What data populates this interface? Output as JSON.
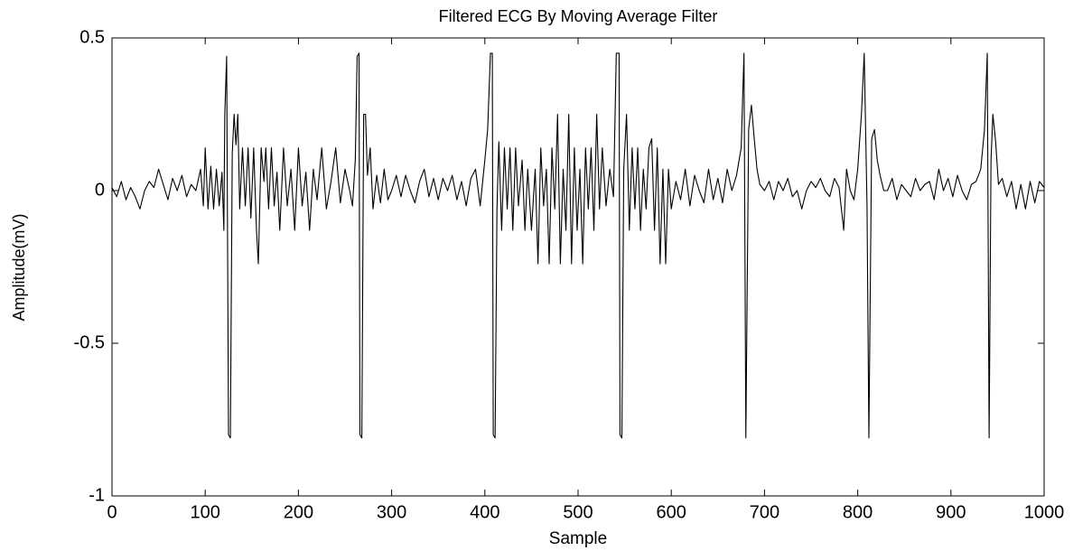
{
  "chart_data": {
    "type": "line",
    "title": "Filtered ECG By Moving Average Filter",
    "x_label": "Sample",
    "y_label": "Amplitude(mV)",
    "color": "#000000",
    "xlim": [
      0,
      1000
    ],
    "xticks": [
      0,
      100,
      200,
      300,
      400,
      500,
      600,
      700,
      800,
      900,
      1000
    ],
    "ylim": [
      -1,
      0.5
    ],
    "yticks": [
      -1,
      -0.5,
      0,
      0.5
    ],
    "grid": false,
    "x": [
      0,
      5,
      10,
      15,
      20,
      25,
      30,
      35,
      40,
      45,
      50,
      55,
      60,
      65,
      70,
      75,
      80,
      85,
      90,
      95,
      98,
      100,
      103,
      106,
      109,
      112,
      115,
      118,
      120,
      121,
      123,
      125,
      127,
      129,
      131,
      133,
      135,
      137,
      140,
      143,
      146,
      149,
      152,
      155,
      157,
      160,
      163,
      165,
      168,
      171,
      174,
      177,
      180,
      184,
      188,
      192,
      196,
      200,
      204,
      208,
      212,
      216,
      220,
      225,
      230,
      235,
      240,
      245,
      250,
      255,
      258,
      261,
      263,
      265,
      266,
      268,
      270,
      272,
      274,
      277,
      280,
      284,
      288,
      292,
      296,
      300,
      305,
      310,
      315,
      320,
      325,
      330,
      335,
      340,
      345,
      350,
      355,
      360,
      365,
      370,
      375,
      380,
      385,
      390,
      395,
      400,
      403,
      406,
      408,
      409,
      411,
      413,
      415,
      418,
      421,
      424,
      427,
      430,
      433,
      436,
      440,
      443,
      446,
      450,
      454,
      457,
      460,
      463,
      466,
      469,
      472,
      475,
      478,
      481,
      484,
      487,
      490,
      493,
      496,
      499,
      502,
      505,
      508,
      511,
      514,
      517,
      520,
      523,
      526,
      530,
      534,
      538,
      541,
      544,
      545,
      547,
      549,
      552,
      555,
      558,
      561,
      564,
      567,
      570,
      573,
      576,
      579,
      582,
      585,
      588,
      591,
      594,
      597,
      600,
      605,
      610,
      615,
      620,
      625,
      630,
      635,
      640,
      645,
      650,
      655,
      660,
      665,
      670,
      675,
      678,
      680,
      683,
      686,
      689,
      692,
      695,
      700,
      705,
      710,
      715,
      720,
      725,
      730,
      735,
      740,
      745,
      750,
      755,
      760,
      765,
      770,
      775,
      780,
      785,
      788,
      792,
      796,
      800,
      804,
      807,
      810,
      812,
      815,
      818,
      821,
      824,
      828,
      832,
      837,
      842,
      847,
      852,
      857,
      862,
      867,
      872,
      877,
      882,
      887,
      892,
      897,
      902,
      907,
      912,
      917,
      922,
      927,
      932,
      936,
      939,
      941,
      943,
      945,
      948,
      951,
      955,
      960,
      965,
      970,
      975,
      980,
      985,
      990,
      995,
      1000
    ],
    "values": [
      0.01,
      -0.02,
      0.03,
      -0.03,
      0.01,
      -0.02,
      -0.06,
      0.0,
      0.03,
      0.01,
      0.07,
      0.02,
      -0.03,
      0.04,
      0.0,
      0.05,
      -0.02,
      0.02,
      0.0,
      0.07,
      -0.05,
      0.14,
      -0.06,
      0.08,
      -0.06,
      0.07,
      -0.05,
      0.06,
      -0.13,
      0.25,
      0.44,
      -0.8,
      -0.81,
      0.12,
      0.25,
      0.15,
      0.25,
      -0.06,
      0.14,
      -0.05,
      0.14,
      -0.09,
      0.14,
      -0.13,
      -0.24,
      0.14,
      0.03,
      0.14,
      -0.06,
      0.14,
      -0.05,
      0.06,
      -0.13,
      0.14,
      -0.05,
      0.07,
      -0.13,
      0.14,
      -0.05,
      0.06,
      -0.13,
      0.07,
      -0.03,
      0.14,
      -0.06,
      0.03,
      0.14,
      -0.04,
      0.07,
      0.0,
      -0.05,
      0.1,
      0.44,
      0.45,
      -0.8,
      -0.81,
      0.25,
      0.25,
      0.05,
      0.14,
      -0.06,
      0.05,
      -0.04,
      0.07,
      -0.03,
      0.0,
      0.05,
      -0.02,
      0.05,
      0.0,
      -0.04,
      0.03,
      0.07,
      -0.02,
      0.04,
      -0.03,
      0.04,
      0.0,
      0.05,
      -0.03,
      0.03,
      -0.05,
      0.04,
      0.07,
      -0.05,
      0.1,
      0.2,
      0.45,
      0.45,
      -0.8,
      -0.81,
      -0.06,
      0.16,
      -0.13,
      0.14,
      -0.06,
      0.14,
      -0.13,
      0.14,
      -0.05,
      0.1,
      -0.13,
      0.07,
      -0.13,
      0.07,
      -0.24,
      0.14,
      -0.05,
      0.07,
      -0.24,
      0.14,
      -0.06,
      0.25,
      -0.24,
      0.07,
      -0.13,
      0.25,
      -0.24,
      0.14,
      -0.13,
      0.07,
      -0.24,
      0.14,
      -0.06,
      0.14,
      -0.13,
      0.25,
      -0.06,
      0.14,
      -0.05,
      0.07,
      -0.02,
      0.45,
      0.45,
      -0.8,
      -0.81,
      0.07,
      0.25,
      -0.13,
      0.14,
      -0.06,
      0.14,
      -0.13,
      0.07,
      -0.06,
      0.14,
      0.17,
      -0.13,
      0.14,
      -0.24,
      0.07,
      -0.24,
      0.07,
      -0.06,
      0.03,
      -0.03,
      0.07,
      -0.05,
      0.05,
      0.0,
      -0.04,
      0.07,
      -0.03,
      0.04,
      -0.04,
      0.07,
      0.0,
      0.05,
      0.14,
      0.45,
      -0.81,
      0.2,
      0.28,
      0.17,
      0.07,
      0.02,
      0.0,
      0.03,
      -0.03,
      0.03,
      0.0,
      0.04,
      -0.02,
      0.0,
      -0.06,
      0.0,
      0.03,
      0.01,
      0.04,
      0.0,
      -0.02,
      0.04,
      0.01,
      -0.13,
      0.07,
      0.0,
      -0.03,
      0.07,
      0.25,
      0.45,
      -0.05,
      -0.81,
      0.17,
      0.2,
      0.1,
      0.05,
      0.0,
      0.0,
      0.04,
      -0.03,
      0.02,
      0.0,
      -0.02,
      0.04,
      0.0,
      0.02,
      0.03,
      -0.03,
      0.07,
      0.0,
      0.04,
      -0.02,
      0.05,
      0.0,
      -0.03,
      0.02,
      0.03,
      0.07,
      0.2,
      0.45,
      -0.81,
      0.1,
      0.25,
      0.16,
      0.02,
      0.04,
      -0.02,
      0.03,
      -0.06,
      0.02,
      -0.06,
      0.03,
      -0.04,
      0.03,
      0.01
    ]
  }
}
